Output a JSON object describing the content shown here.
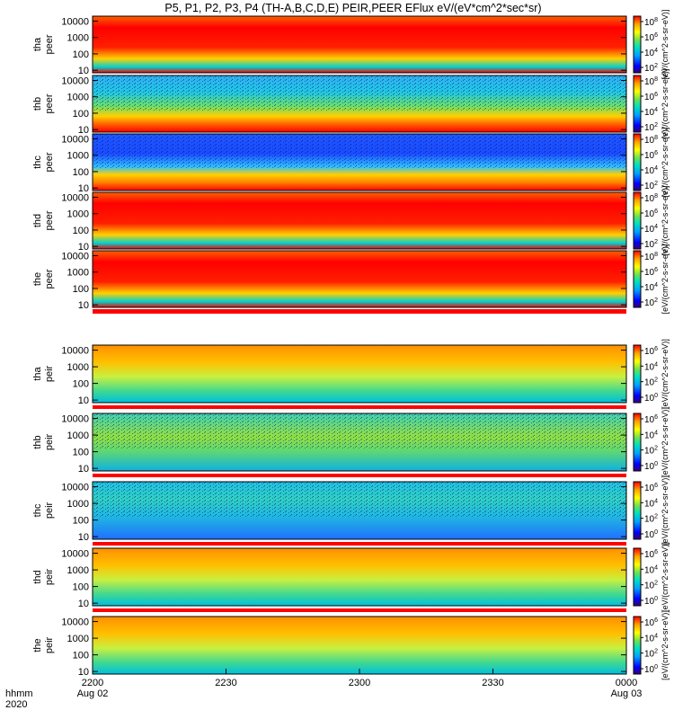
{
  "chart_data": {
    "type": "heatmap",
    "title": "P5, P1, P2, P3, P4 (TH-A,B,C,D,E) PEIR,PEER EFlux eV/(eV*cm^2*sec*sr)",
    "y_scale": "log",
    "y_tick_labels": [
      "10000",
      "1000",
      "100",
      "10"
    ],
    "y_ticks": [
      10000,
      1000,
      100,
      10
    ],
    "x_tick_labels": [
      "2200",
      "2230",
      "2300",
      "2330",
      "0000"
    ],
    "x_tick_dates": [
      "Aug 02",
      "",
      "",
      "",
      "Aug 03"
    ],
    "x_axis_label_top": "hhmm",
    "x_axis_label_bottom": "2020",
    "colorbar_label": "[eV/(cm^2-s-sr-eV)]",
    "colormap": [
      "#3a0070",
      "#0000ff",
      "#00a0ff",
      "#00e0c0",
      "#70e050",
      "#ffff00",
      "#ffa000",
      "#ff0000"
    ],
    "panels": [
      {
        "name": "tha peer",
        "line1": "tha",
        "line2": "peer",
        "colorbar_ticks": [
          "10^8",
          "10^6",
          "10^4",
          "10^2"
        ],
        "typical_intensity": "high"
      },
      {
        "name": "thb peer",
        "line1": "thb",
        "line2": "peer",
        "colorbar_ticks": [
          "10^8",
          "10^6",
          "10^4",
          "10^2"
        ],
        "typical_intensity": "medium-noisy"
      },
      {
        "name": "thc peer",
        "line1": "thc",
        "line2": "peer",
        "colorbar_ticks": [
          "10^8",
          "10^6",
          "10^4",
          "10^2"
        ],
        "typical_intensity": "low-noisy"
      },
      {
        "name": "thd peer",
        "line1": "thd",
        "line2": "peer",
        "colorbar_ticks": [
          "10^8",
          "10^6",
          "10^4",
          "10^2"
        ],
        "typical_intensity": "high"
      },
      {
        "name": "the peer",
        "line1": "the",
        "line2": "peer",
        "colorbar_ticks": [
          "10^8",
          "10^6",
          "10^4",
          "10^2"
        ],
        "typical_intensity": "high"
      },
      {
        "name": "tha peir",
        "line1": "tha",
        "line2": "peir",
        "colorbar_ticks": [
          "10^6",
          "10^4",
          "10^2",
          "10^0"
        ],
        "typical_intensity": "medium"
      },
      {
        "name": "thb peir",
        "line1": "thb",
        "line2": "peir",
        "colorbar_ticks": [
          "10^6",
          "10^4",
          "10^2",
          "10^0"
        ],
        "typical_intensity": "medium-noisy"
      },
      {
        "name": "thc peir",
        "line1": "thc",
        "line2": "peir",
        "colorbar_ticks": [
          "10^6",
          "10^4",
          "10^2",
          "10^0"
        ],
        "typical_intensity": "low-noisy"
      },
      {
        "name": "thd peir",
        "line1": "thd",
        "line2": "peir",
        "colorbar_ticks": [
          "10^6",
          "10^4",
          "10^2",
          "10^0"
        ],
        "typical_intensity": "medium"
      },
      {
        "name": "the peir",
        "line1": "the",
        "line2": "peir",
        "colorbar_ticks": [
          "10^6",
          "10^4",
          "10^2",
          "10^0"
        ],
        "typical_intensity": "medium"
      }
    ]
  }
}
